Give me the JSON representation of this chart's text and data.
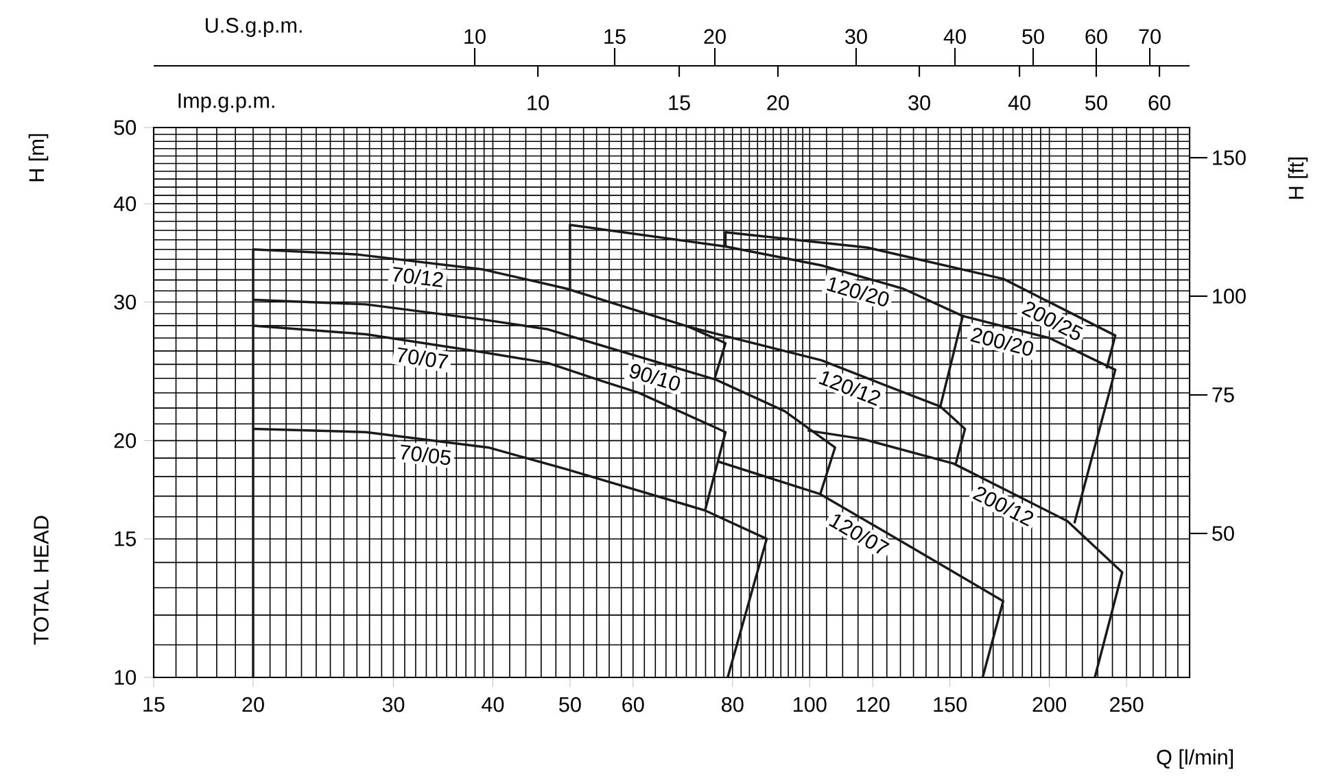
{
  "chart_data": {
    "type": "line",
    "xlabel": "Q [l/min]",
    "ylabel": "H [m]",
    "y2label": "H [ft]",
    "x2label": "Imp.g.p.m.",
    "annotations": [
      "TOTAL HEAD",
      "U.S.g.p.m.",
      "10",
      "15",
      "20",
      "30",
      "40",
      "50",
      "60",
      "70",
      "10",
      "15",
      "20",
      "30",
      "40",
      "50",
      "60",
      "50",
      "75",
      "100",
      "150"
    ],
    "log": "xy",
    "grid": true,
    "xlim": [
      15,
      300
    ],
    "ylim": [
      10,
      50
    ],
    "xticks": [
      15,
      20,
      30,
      40,
      50,
      60,
      80,
      100,
      120,
      150,
      200,
      250
    ],
    "yticks": [
      10,
      15,
      20,
      30,
      40,
      50
    ],
    "series": [
      {
        "name": "70/12",
        "color": "#1a1a1a",
        "x": [
          20,
          20,
          26.9,
          38.9,
          49.5,
          70.5,
          78.4,
          75.9
        ],
        "values": [
          10,
          35,
          34.5,
          33,
          31.2,
          27.9,
          26.6,
          23.9
        ]
      },
      {
        "name": "90/10",
        "color": "#1a1a1a",
        "x": [
          20,
          27.7,
          38.9,
          46.9,
          54.9,
          76.3,
          93,
          107.6,
          103.1
        ],
        "values": [
          30.2,
          29.8,
          28.5,
          27.7,
          26.4,
          23.9,
          21.8,
          19.6,
          17.1
        ]
      },
      {
        "name": "70/07",
        "color": "#1a1a1a",
        "x": [
          20,
          27.7,
          38.9,
          46.9,
          54.9,
          61,
          78.4,
          73.9
        ],
        "values": [
          28,
          27.3,
          25.9,
          25.1,
          23.8,
          23,
          20.5,
          16.3
        ]
      },
      {
        "name": "70/05",
        "color": "#1a1a1a",
        "x": [
          20,
          27.7,
          39.5,
          49.4,
          69.6,
          73.9,
          88.3,
          78.9
        ],
        "values": [
          20.7,
          20.5,
          19.6,
          18.4,
          16.6,
          16.3,
          15,
          10
        ]
      },
      {
        "name": "120/12",
        "color": "#1a1a1a",
        "x": [
          70.5,
          103.4,
          126,
          145.9,
          156.7,
          152.6
        ],
        "values": [
          27.9,
          25.3,
          23.4,
          22.1,
          20.7,
          18.7
        ]
      },
      {
        "name": "120/07",
        "color": "#1a1a1a",
        "x": [
          76.9,
          103.1,
          134.8,
          175,
          164.9
        ],
        "values": [
          18.8,
          17.1,
          14.6,
          12.5,
          10
        ]
      },
      {
        "name": "200/12",
        "color": "#1a1a1a",
        "x": [
          99.4,
          116.4,
          151.6,
          210.7,
          246.9,
          228.1
        ],
        "values": [
          20.6,
          20.1,
          18.7,
          15.8,
          13.6,
          10
        ]
      },
      {
        "name": "120/20",
        "color": "#1a1a1a",
        "x": [
          50,
          50,
          78.4,
          103.4,
          131,
          155.7,
          145.9
        ],
        "values": [
          31.2,
          37.6,
          35.3,
          33.4,
          31.2,
          28.8,
          22.1
        ]
      },
      {
        "name": "200/25",
        "color": "#1a1a1a",
        "x": [
          78.4,
          78.4,
          118,
          175.2,
          242,
          236
        ],
        "values": [
          35.3,
          36.8,
          35.2,
          32.1,
          27.2,
          24.7
        ]
      },
      {
        "name": "200/20",
        "color": "#1a1a1a",
        "x": [
          155.7,
          200,
          242,
          215
        ],
        "values": [
          28.8,
          27,
          24.6,
          15.7
        ]
      }
    ]
  }
}
